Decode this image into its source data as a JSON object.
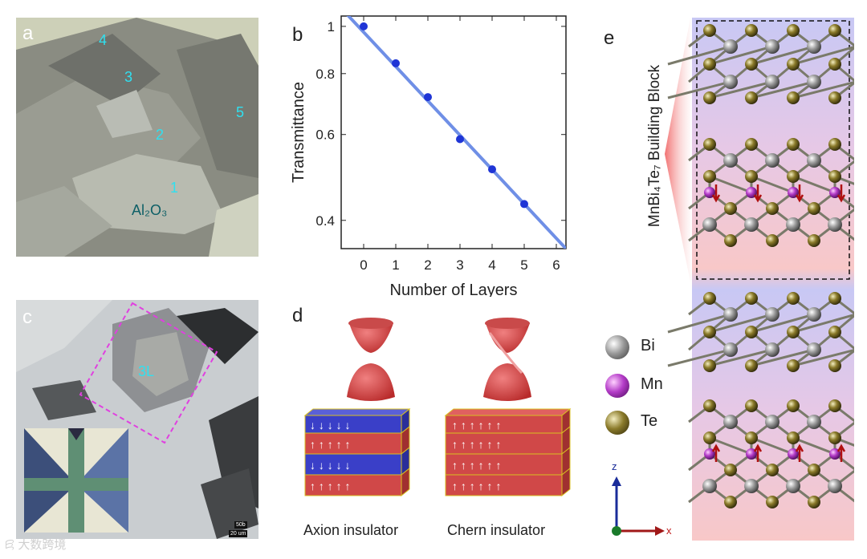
{
  "panels": {
    "a": {
      "letter": "a",
      "region_labels": [
        "4",
        "3",
        "5",
        "2",
        "1"
      ],
      "substrate_label": "Al₂O₃"
    },
    "b": {
      "letter": "b"
    },
    "c": {
      "letter": "c",
      "layer_label": "3L",
      "scalebar_top": "50b",
      "scalebar_bottom": "20 um"
    },
    "d": {
      "letter": "d",
      "left_caption": "Axion insulator",
      "right_caption": "Chern insulator"
    },
    "e": {
      "letter": "e",
      "vertical_title": "MnBi₄Te₇ Building Block",
      "legend": [
        {
          "label": "Bi",
          "color": "#9a9a9a"
        },
        {
          "label": "Mn",
          "color": "#b43cc8"
        },
        {
          "label": "Te",
          "color": "#8a7a2a"
        }
      ],
      "axes": {
        "z": "z",
        "x": "x"
      }
    }
  },
  "chart_data": {
    "type": "scatter",
    "xlabel": "Number of Layers",
    "ylabel": "Transmittance",
    "yscale": "log",
    "xlim": [
      -0.7,
      6.3
    ],
    "ylim": [
      0.35,
      1.05
    ],
    "xticks": [
      0,
      1,
      2,
      3,
      4,
      5,
      6
    ],
    "yticks": [
      0.4,
      0.6,
      0.8,
      1
    ],
    "ytick_labels": [
      "0.4",
      "0.6",
      "0.8",
      "1"
    ],
    "series": [
      {
        "x": [
          0,
          1,
          2,
          3,
          4,
          5
        ],
        "y": [
          1.0,
          0.84,
          0.716,
          0.587,
          0.509,
          0.432
        ],
        "color": "#1f35d6"
      }
    ],
    "fit_line": {
      "x": [
        -0.7,
        6.3
      ],
      "y": [
        1.09,
        0.35
      ],
      "color": "#6f8fe6"
    }
  },
  "colors": {
    "dashed_magenta": "#e040e0",
    "cyan_text": "#2fe0f0",
    "spin_down_block": "#3a3fc8",
    "spin_up_block": "#d04848",
    "block_edge": "#d8c020"
  }
}
